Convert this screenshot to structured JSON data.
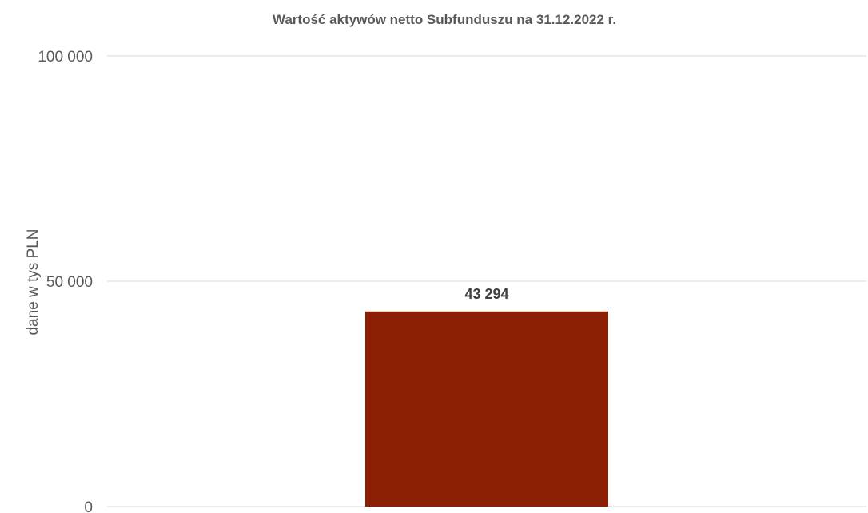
{
  "chart_data": {
    "type": "bar",
    "title": "Wartość aktywów netto Subfunduszu na 31.12.2022 r.",
    "xlabel": "",
    "ylabel": "dane  w tys PLN",
    "categories": [
      ""
    ],
    "values": [
      43294
    ],
    "data_labels": [
      "43 294"
    ],
    "ylim": [
      0,
      100000
    ],
    "yticks": [
      0,
      50000,
      100000
    ],
    "ytick_labels": [
      "0",
      "50 000",
      "100 000"
    ],
    "grid": true,
    "legend": "none",
    "bar_color": "#8b1e04"
  }
}
